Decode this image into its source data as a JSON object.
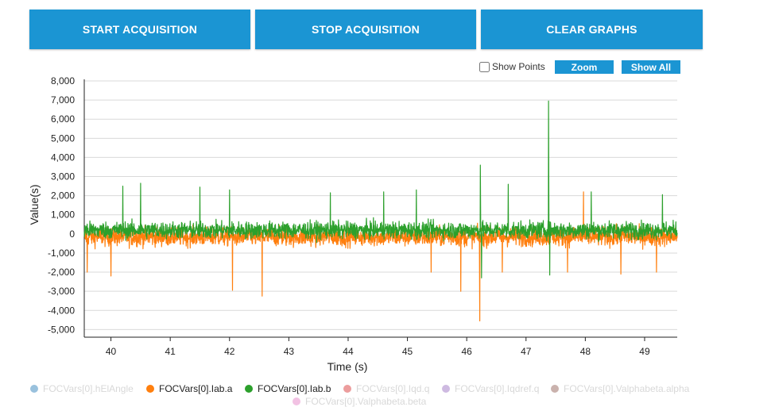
{
  "toolbar": {
    "start_label": "START ACQUISITION",
    "stop_label": "STOP ACQUISITION",
    "clear_label": "CLEAR GRAPHS"
  },
  "controls": {
    "show_points_label": "Show Points",
    "show_points_checked": false,
    "zoom_label": "Zoom",
    "show_all_label": "Show All"
  },
  "colors": {
    "button": "#1b95d3",
    "grid": "#d9d9d9",
    "series_ia": "#ff7f0e",
    "series_ib": "#2ca02c"
  },
  "legend": [
    {
      "name": "FOCVars[0].hElAngle",
      "color": "#1f77b4",
      "active": false
    },
    {
      "name": "FOCVars[0].Iab.a",
      "color": "#ff7f0e",
      "active": true
    },
    {
      "name": "FOCVars[0].Iab.b",
      "color": "#2ca02c",
      "active": true
    },
    {
      "name": "FOCVars[0].Iqd.q",
      "color": "#d62728",
      "active": false
    },
    {
      "name": "FOCVars[0].Iqdref.q",
      "color": "#9467bd",
      "active": false
    },
    {
      "name": "FOCVars[0].Valphabeta.alpha",
      "color": "#8c564b",
      "active": false
    },
    {
      "name": "FOCVars[0].Valphabeta.beta",
      "color": "#e377c2",
      "active": false
    }
  ],
  "chart_data": {
    "type": "line",
    "title": "",
    "xlabel": "Time (s)",
    "ylabel": "Value(s)",
    "xlim": [
      39.55,
      49.55
    ],
    "ylim": [
      -5400,
      8000
    ],
    "xticks": [
      40,
      41,
      42,
      43,
      44,
      45,
      46,
      47,
      48,
      49
    ],
    "yticks": [
      {
        "value": 8000,
        "label": "8,000"
      },
      {
        "value": 7000,
        "label": "7,000"
      },
      {
        "value": 6000,
        "label": "6,000"
      },
      {
        "value": 5000,
        "label": "5,000"
      },
      {
        "value": 4000,
        "label": "4,000"
      },
      {
        "value": 3000,
        "label": "3,000"
      },
      {
        "value": 2000,
        "label": "2,000"
      },
      {
        "value": 1000,
        "label": "1,000"
      },
      {
        "value": 0,
        "label": "0"
      },
      {
        "value": -1000,
        "label": "-1,000"
      },
      {
        "value": -2000,
        "label": "-2,000"
      },
      {
        "value": -3000,
        "label": "-3,000"
      },
      {
        "value": -4000,
        "label": "-4,000"
      },
      {
        "value": -5000,
        "label": "-5,000"
      }
    ],
    "grid": true,
    "series": [
      {
        "name": "FOCVars[0].Iab.a",
        "color": "#ff7f0e",
        "noise_band": {
          "center": 0,
          "typical_low": -1300,
          "typical_high": 1200
        },
        "spikes": [
          {
            "x": 39.6,
            "y": -2000
          },
          {
            "x": 40.0,
            "y": -2200
          },
          {
            "x": 42.05,
            "y": -2950
          },
          {
            "x": 42.55,
            "y": -3250
          },
          {
            "x": 45.4,
            "y": -2000
          },
          {
            "x": 45.9,
            "y": -3000
          },
          {
            "x": 46.22,
            "y": -4550
          },
          {
            "x": 46.6,
            "y": -2000
          },
          {
            "x": 47.7,
            "y": -2000
          },
          {
            "x": 47.97,
            "y": 2200
          },
          {
            "x": 48.6,
            "y": -2100
          },
          {
            "x": 49.2,
            "y": -2000
          }
        ]
      },
      {
        "name": "FOCVars[0].Iab.b",
        "color": "#2ca02c",
        "noise_band": {
          "center": 200,
          "typical_low": -900,
          "typical_high": 1400
        },
        "spikes": [
          {
            "x": 40.2,
            "y": 2500
          },
          {
            "x": 40.5,
            "y": 2650
          },
          {
            "x": 41.5,
            "y": 2450
          },
          {
            "x": 42.0,
            "y": 2300
          },
          {
            "x": 43.7,
            "y": 2150
          },
          {
            "x": 44.6,
            "y": 2200
          },
          {
            "x": 45.15,
            "y": 2300
          },
          {
            "x": 46.23,
            "y": 3600
          },
          {
            "x": 46.25,
            "y": -2300
          },
          {
            "x": 46.7,
            "y": 2600
          },
          {
            "x": 47.38,
            "y": 6950
          },
          {
            "x": 47.4,
            "y": -2150
          },
          {
            "x": 48.1,
            "y": 2200
          },
          {
            "x": 49.3,
            "y": 2050
          }
        ]
      }
    ]
  }
}
